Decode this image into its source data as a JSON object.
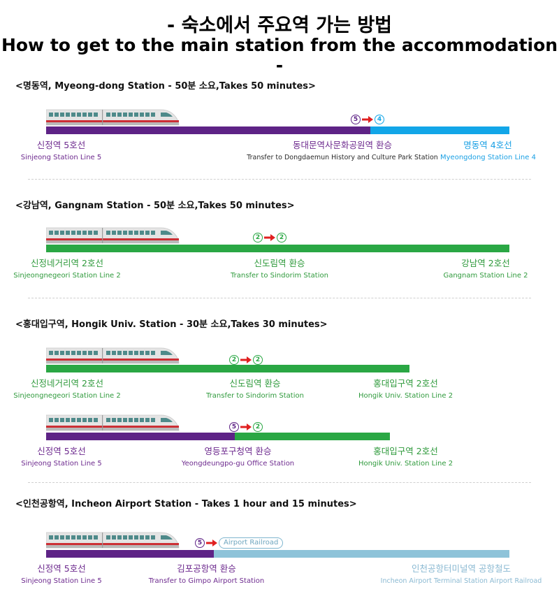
{
  "title_ko": "- 숙소에서 주요역 가는 방법",
  "title_en": "How to get to the main station from the accommodation -",
  "colors": {
    "line5": "#5e2386",
    "line4": "#12a6e8",
    "line2": "#2aa744",
    "airport": "#8ec3d9",
    "transfer_arrow": "#e02020"
  },
  "routes": [
    {
      "heading": "<명동역, Myeong-dong Station - 50분 소요,Takes 50 minutes>",
      "from": {
        "ko": "신정역 5호선",
        "en": "Sinjeong Station Line 5"
      },
      "transfer": {
        "ko": "동대문역사문화공원역 환승",
        "en": "Transfer to Dongdaemun History and Culture Park Station",
        "from_line": "5",
        "to_line": "4"
      },
      "to": {
        "ko": "명동역 4호선",
        "en": "Myeongdong Station Line 4"
      }
    },
    {
      "heading": "<강남역, Gangnam Station - 50분 소요,Takes 50 minutes>",
      "from": {
        "ko": "신정네거리역 2호선",
        "en": "Sinjeongnegeori Station Line 2"
      },
      "transfer": {
        "ko": "신도림역 환승",
        "en": "Transfer to Sindorim Station",
        "from_line": "2",
        "to_line": "2"
      },
      "to": {
        "ko": "강남역 2호선",
        "en": "Gangnam Station Line 2"
      }
    },
    {
      "heading": "<홍대입구역, Hongik Univ. Station - 30분 소요,Takes 30 minutes>",
      "from": {
        "ko": "신정네거리역 2호선",
        "en": "Sinjeongnegeori Station Line 2"
      },
      "transfer": {
        "ko": "신도림역 환승",
        "en": "Transfer to Sindorim Station",
        "from_line": "2",
        "to_line": "2"
      },
      "to": {
        "ko": "홍대입구역 2호선",
        "en": "Hongik Univ. Station Line 2"
      }
    },
    {
      "heading": "",
      "from": {
        "ko": "신정역 5호선",
        "en": "Sinjeong Station Line 5"
      },
      "transfer": {
        "ko": "영등포구청역 환승",
        "en": "Yeongdeungpo-gu Office Station",
        "from_line": "5",
        "to_line": "2"
      },
      "to": {
        "ko": "홍대입구역 2호선",
        "en": "Hongik Univ. Station Line 2"
      }
    },
    {
      "heading": "<인천공항역, Incheon Airport Station - Takes 1 hour and 15 minutes>",
      "from": {
        "ko": "신정역 5호선",
        "en": "Sinjeong Station Line 5"
      },
      "transfer": {
        "ko": "김포공항역 환승",
        "en": "Transfer to Gimpo Airport Station",
        "from_line": "5",
        "to_line": "Airport Railroad"
      },
      "to": {
        "ko": "인천공항터미널역 공항철도",
        "en": "Incheon Airport Terminal Station Airport Railroad"
      }
    }
  ]
}
